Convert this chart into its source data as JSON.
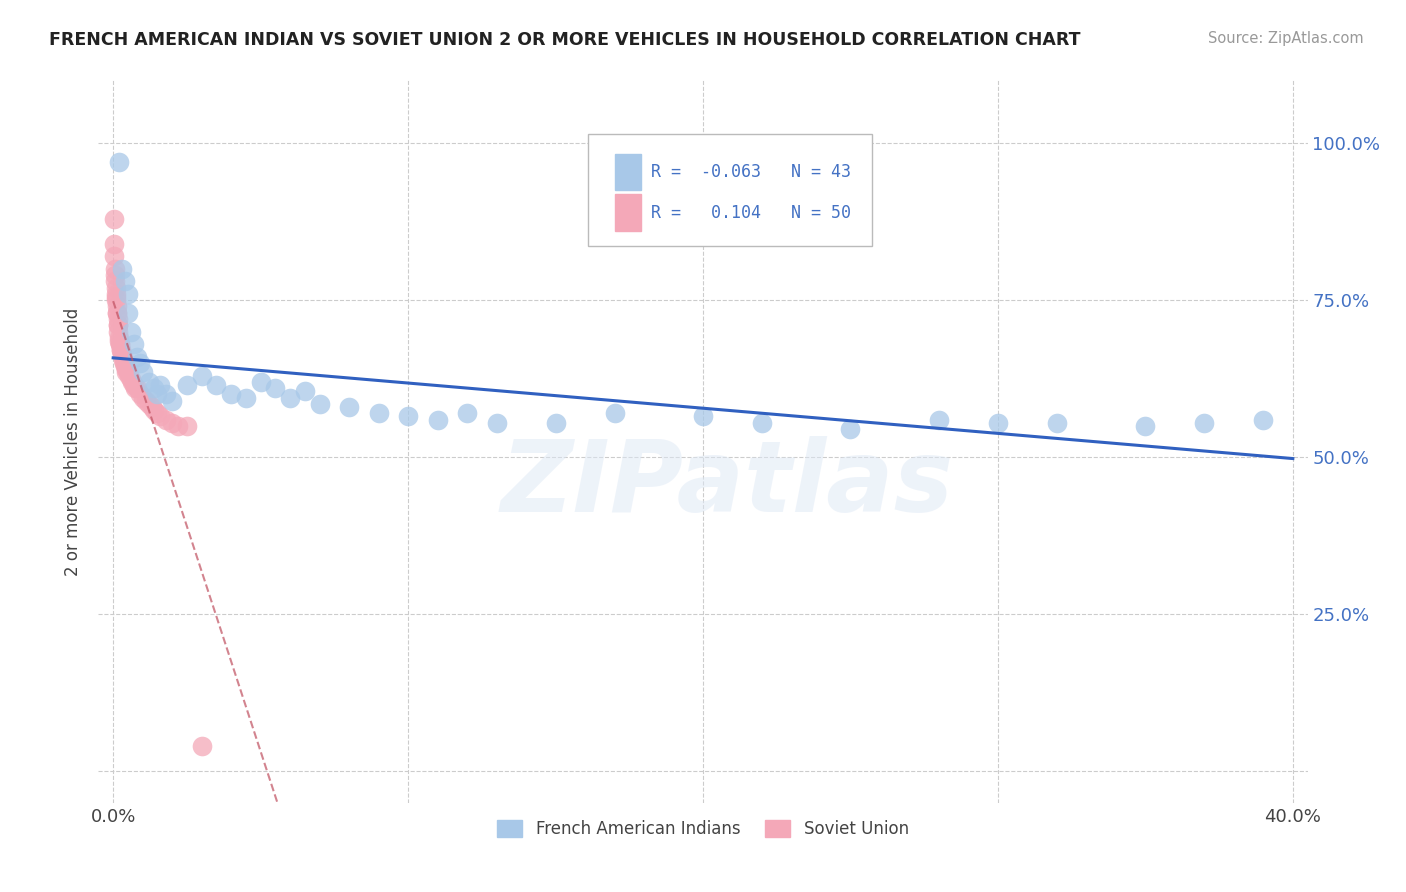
{
  "title": "FRENCH AMERICAN INDIAN VS SOVIET UNION 2 OR MORE VEHICLES IN HOUSEHOLD CORRELATION CHART",
  "source": "Source: ZipAtlas.com",
  "ylabel": "2 or more Vehicles in Household",
  "blue_R": -0.063,
  "blue_N": 43,
  "pink_R": 0.104,
  "pink_N": 50,
  "blue_color": "#a8c8e8",
  "pink_color": "#f4a8b8",
  "blue_line_color": "#3060c0",
  "pink_line_color": "#c05060",
  "watermark_text": "ZIPatlas",
  "blue_x": [
    0.002,
    0.003,
    0.004,
    0.005,
    0.005,
    0.006,
    0.007,
    0.008,
    0.009,
    0.01,
    0.012,
    0.014,
    0.015,
    0.016,
    0.018,
    0.02,
    0.025,
    0.03,
    0.035,
    0.04,
    0.045,
    0.05,
    0.055,
    0.06,
    0.065,
    0.07,
    0.08,
    0.09,
    0.1,
    0.11,
    0.12,
    0.13,
    0.15,
    0.17,
    0.2,
    0.22,
    0.25,
    0.28,
    0.3,
    0.32,
    0.35,
    0.37,
    0.39
  ],
  "blue_y": [
    0.97,
    0.8,
    0.78,
    0.76,
    0.73,
    0.7,
    0.68,
    0.66,
    0.65,
    0.635,
    0.62,
    0.61,
    0.6,
    0.615,
    0.6,
    0.59,
    0.615,
    0.63,
    0.615,
    0.6,
    0.595,
    0.62,
    0.61,
    0.595,
    0.605,
    0.585,
    0.58,
    0.57,
    0.565,
    0.56,
    0.57,
    0.555,
    0.555,
    0.57,
    0.565,
    0.555,
    0.545,
    0.56,
    0.555,
    0.555,
    0.55,
    0.555,
    0.56
  ],
  "pink_x": [
    0.0002,
    0.0003,
    0.0004,
    0.0005,
    0.0006,
    0.0007,
    0.0008,
    0.0009,
    0.001,
    0.0011,
    0.0012,
    0.0013,
    0.0014,
    0.0015,
    0.0016,
    0.0017,
    0.0018,
    0.0019,
    0.002,
    0.0022,
    0.0024,
    0.0026,
    0.0028,
    0.003,
    0.0032,
    0.0035,
    0.0038,
    0.004,
    0.0042,
    0.0045,
    0.005,
    0.0055,
    0.006,
    0.0065,
    0.007,
    0.0075,
    0.008,
    0.009,
    0.01,
    0.011,
    0.012,
    0.013,
    0.014,
    0.015,
    0.016,
    0.018,
    0.02,
    0.022,
    0.025,
    0.03
  ],
  "pink_y": [
    0.88,
    0.84,
    0.82,
    0.8,
    0.79,
    0.78,
    0.77,
    0.76,
    0.755,
    0.75,
    0.74,
    0.73,
    0.73,
    0.72,
    0.71,
    0.71,
    0.7,
    0.69,
    0.685,
    0.68,
    0.68,
    0.67,
    0.67,
    0.665,
    0.66,
    0.655,
    0.65,
    0.645,
    0.64,
    0.635,
    0.635,
    0.63,
    0.625,
    0.62,
    0.615,
    0.61,
    0.61,
    0.6,
    0.595,
    0.59,
    0.585,
    0.58,
    0.575,
    0.57,
    0.565,
    0.56,
    0.555,
    0.55,
    0.55,
    0.04
  ],
  "x_tick_pos": [
    0.0,
    0.1,
    0.2,
    0.3,
    0.4
  ],
  "x_tick_labels": [
    "0.0%",
    "",
    "",
    "",
    "40.0%"
  ],
  "y_tick_pos": [
    0.0,
    0.25,
    0.5,
    0.75,
    1.0
  ],
  "y_tick_labels": [
    "",
    "25.0%",
    "50.0%",
    "75.0%",
    "100.0%"
  ],
  "xlim": [
    -0.005,
    0.405
  ],
  "ylim": [
    -0.05,
    1.1
  ]
}
